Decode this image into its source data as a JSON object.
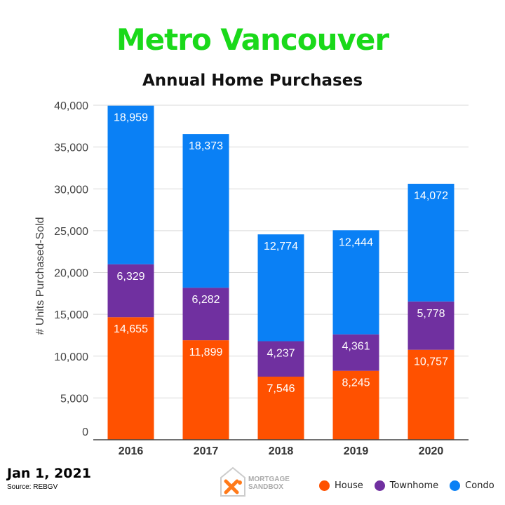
{
  "header": {
    "title": "Metro Vancouver"
  },
  "footer": {
    "date": "Jan 1, 2021",
    "source": "Source: REBGV"
  },
  "logo": {
    "line1": "MORTGAGE",
    "line2": "SANDBOX"
  },
  "chart_data": {
    "type": "bar",
    "stacked": true,
    "title": "Annual Home Purchases",
    "xlabel": "",
    "ylabel": "# Units Purchased-Sold",
    "ylim": [
      0,
      40000
    ],
    "yticks": [
      "0",
      "5,000",
      "10,000",
      "15,000",
      "20,000",
      "25,000",
      "30,000",
      "35,000",
      "40,000"
    ],
    "categories": [
      "2016",
      "2017",
      "2018",
      "2019",
      "2020"
    ],
    "grid": true,
    "legend_position": "bottom-right",
    "series": [
      {
        "name": "House",
        "color": "#ff5100",
        "values": [
          14655,
          11899,
          7546,
          8245,
          10757
        ],
        "labels": [
          "14,655",
          "11,899",
          "7,546",
          "8,245",
          "10,757"
        ]
      },
      {
        "name": "Townhome",
        "color": "#7030a0",
        "values": [
          6329,
          6282,
          4237,
          4361,
          5778
        ],
        "labels": [
          "6,329",
          "6,282",
          "4,237",
          "4,361",
          "5,778"
        ]
      },
      {
        "name": "Condo",
        "color": "#0a80f5",
        "values": [
          18959,
          18373,
          12774,
          12444,
          14072
        ],
        "labels": [
          "18,959",
          "18,373",
          "12,774",
          "12,444",
          "14,072"
        ]
      }
    ]
  }
}
